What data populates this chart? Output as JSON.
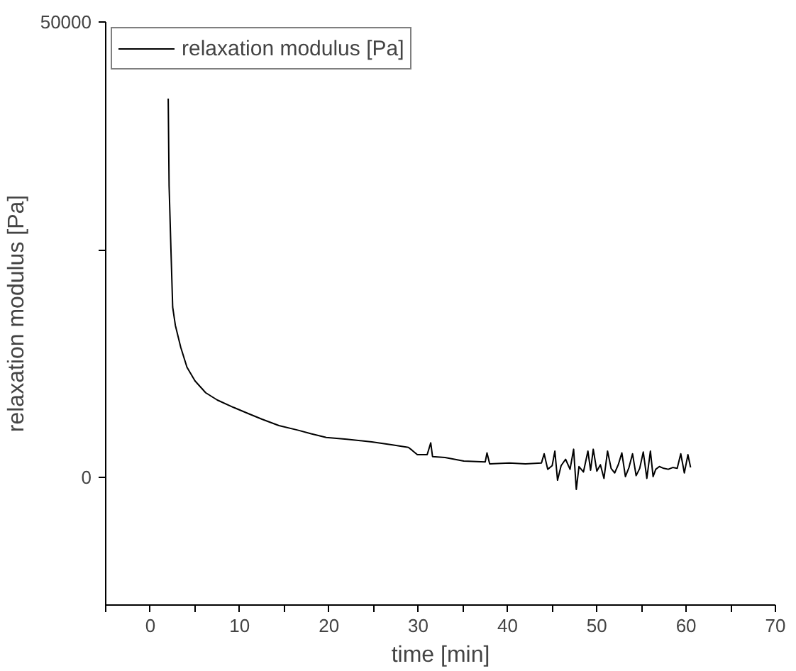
{
  "chart_data": {
    "type": "line",
    "xlabel": "time [min]",
    "ylabel": "relaxation modulus [Pa]",
    "xlim": [
      -5,
      70
    ],
    "ylim": [
      -14000,
      50000
    ],
    "xticks": [
      {
        "value": -5,
        "label": null
      },
      0,
      {
        "value": 5,
        "label": null
      },
      10,
      {
        "value": 15,
        "label": null
      },
      20,
      {
        "value": 25,
        "label": null
      },
      30,
      {
        "value": 35,
        "label": null
      },
      40,
      {
        "value": 45,
        "label": null
      },
      50,
      {
        "value": 55,
        "label": null
      },
      60,
      {
        "value": 65,
        "label": null
      },
      70
    ],
    "yticks": [
      0,
      {
        "value": 25000,
        "label": null
      },
      50000
    ],
    "grid": false,
    "legend": "top left",
    "line_style": "solid",
    "marker": "none",
    "series": [
      {
        "name": "relaxation modulus [Pa]",
        "color": "#000000",
        "x": [
          2.0,
          2.1,
          2.3,
          2.5,
          2.8,
          3.4,
          4.1,
          5.0,
          6.2,
          7.5,
          9.3,
          11.0,
          12.5,
          14.4,
          16.5,
          18.0,
          19.7,
          22.0,
          24.8,
          27.0,
          28.9,
          29.3,
          29.9,
          31.0,
          31.4,
          31.6,
          33.0,
          35.1,
          37.5,
          37.7,
          38.0,
          40.2,
          42.0,
          43.8,
          44.1,
          44.5,
          45.0,
          45.3,
          45.6,
          46.0,
          46.5,
          47.0,
          47.4,
          47.7,
          48.0,
          48.5,
          49.0,
          49.3,
          49.6,
          50.0,
          50.4,
          50.8,
          51.2,
          51.6,
          52.0,
          52.4,
          52.8,
          53.2,
          53.6,
          54.0,
          54.4,
          54.8,
          55.2,
          55.6,
          56.0,
          56.3,
          56.6,
          57.0,
          57.5,
          58.0,
          58.5,
          59.0,
          59.4,
          59.8,
          60.2,
          60.5
        ],
        "values": [
          41600,
          32000,
          25200,
          18700,
          16700,
          14300,
          12100,
          10600,
          9300,
          8500,
          7700,
          7000,
          6400,
          5700,
          5200,
          4800,
          4400,
          4200,
          3900,
          3600,
          3300,
          3000,
          2500,
          2500,
          3800,
          2300,
          2200,
          1800,
          1700,
          2700,
          1500,
          1600,
          1500,
          1600,
          2600,
          900,
          1300,
          2900,
          -300,
          1300,
          2000,
          900,
          3100,
          -1300,
          1200,
          600,
          2900,
          800,
          3100,
          700,
          1400,
          -100,
          2900,
          1000,
          500,
          1400,
          2700,
          100,
          1100,
          2600,
          200,
          1000,
          2800,
          -100,
          2900,
          100,
          900,
          1200,
          1000,
          900,
          1100,
          1000,
          2600,
          500,
          2500,
          1100
        ]
      }
    ]
  }
}
